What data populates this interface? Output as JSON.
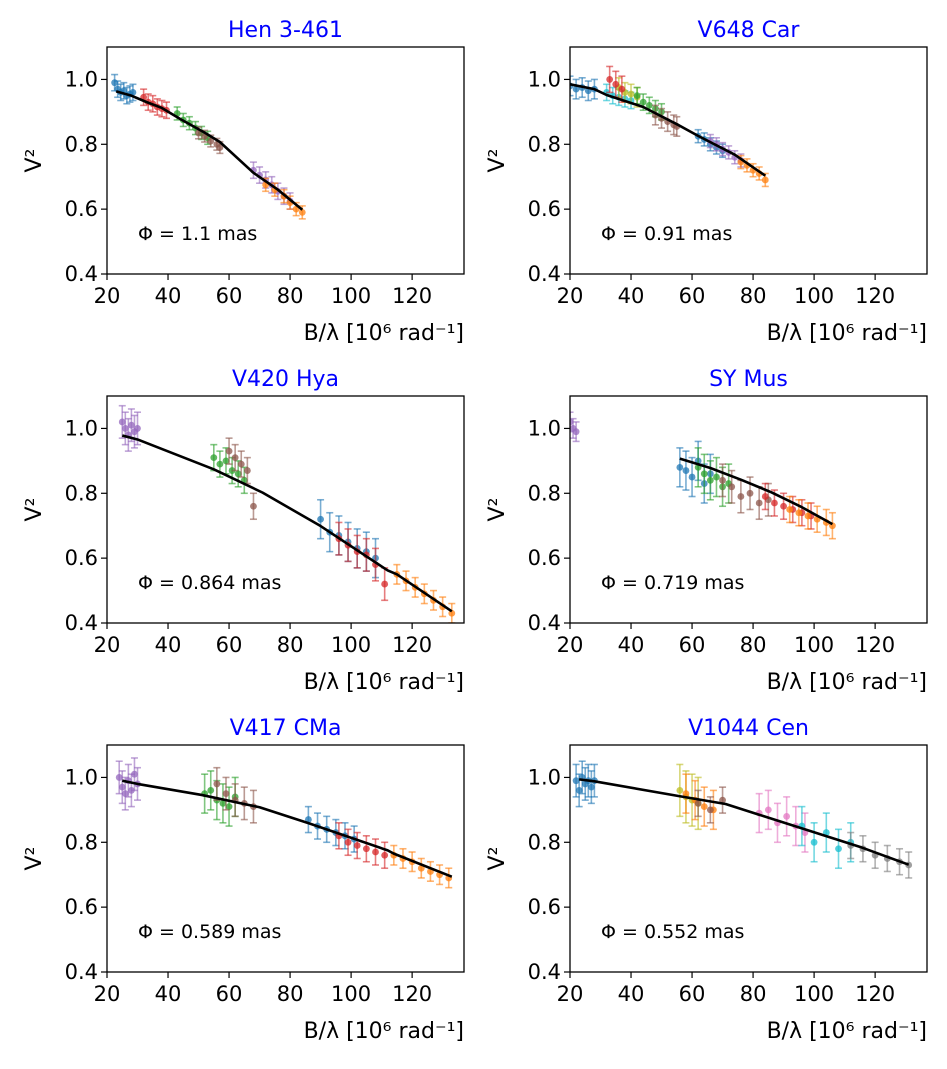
{
  "figure": {
    "description_label": "Six-panel squared visibility vs spatial frequency"
  },
  "chart_data": [
    {
      "type": "scatter",
      "title": "Hen 3-461",
      "xlabel": "B/λ [10⁶ rad⁻¹]",
      "ylabel": "V²",
      "xlim": [
        20,
        137
      ],
      "ylim": [
        0.4,
        1.1
      ],
      "xticks": [
        20,
        40,
        60,
        80,
        100,
        120
      ],
      "yticks": [
        0.4,
        0.6,
        0.8,
        1.0
      ],
      "annotation": "Φ = 1.1 mas",
      "fit": [
        [
          23,
          0.963
        ],
        [
          28,
          0.95
        ],
        [
          33,
          0.93
        ],
        [
          38,
          0.912
        ],
        [
          44,
          0.878
        ],
        [
          52,
          0.836
        ],
        [
          57,
          0.807
        ],
        [
          68,
          0.712
        ],
        [
          76,
          0.66
        ],
        [
          84,
          0.598
        ]
      ],
      "series": [
        {
          "name": "blue",
          "color": "#1f77b4",
          "x": [
            22.5,
            23.5,
            24.5,
            25.5,
            26.5,
            27.5,
            28.5
          ],
          "y": [
            0.99,
            0.97,
            0.96,
            0.965,
            0.95,
            0.955,
            0.96
          ],
          "err": 0.025
        },
        {
          "name": "red",
          "color": "#d62728",
          "x": [
            32,
            33.5,
            35,
            36.5,
            38,
            39.5
          ],
          "y": [
            0.945,
            0.93,
            0.925,
            0.915,
            0.91,
            0.905
          ],
          "err": 0.025
        },
        {
          "name": "green",
          "color": "#2ca02c",
          "x": [
            43,
            45,
            47,
            49,
            51,
            53
          ],
          "y": [
            0.895,
            0.875,
            0.865,
            0.85,
            0.835,
            0.82
          ],
          "err": 0.02
        },
        {
          "name": "brown",
          "color": "#8c564b",
          "x": [
            50,
            52,
            54,
            56,
            57
          ],
          "y": [
            0.835,
            0.825,
            0.81,
            0.8,
            0.79
          ],
          "err": 0.018
        },
        {
          "name": "purple",
          "color": "#9467bd",
          "x": [
            68,
            70,
            72,
            74,
            76,
            78,
            80
          ],
          "y": [
            0.72,
            0.705,
            0.69,
            0.675,
            0.655,
            0.64,
            0.625
          ],
          "err": 0.025
        },
        {
          "name": "orange",
          "color": "#ff7f0e",
          "x": [
            72,
            75,
            78,
            80,
            82,
            84
          ],
          "y": [
            0.675,
            0.66,
            0.64,
            0.62,
            0.6,
            0.59
          ],
          "err": 0.02
        }
      ]
    },
    {
      "type": "scatter",
      "title": "V648 Car",
      "xlabel": "B/λ [10⁶ rad⁻¹]",
      "ylabel": "V²",
      "xlim": [
        20,
        137
      ],
      "ylim": [
        0.4,
        1.1
      ],
      "xticks": [
        20,
        40,
        60,
        80,
        100,
        120
      ],
      "yticks": [
        0.4,
        0.6,
        0.8,
        1.0
      ],
      "annotation": "Φ = 0.91 mas",
      "fit": [
        [
          20,
          0.985
        ],
        [
          28,
          0.97
        ],
        [
          32,
          0.952
        ],
        [
          44,
          0.915
        ],
        [
          55,
          0.862
        ],
        [
          62,
          0.826
        ],
        [
          74,
          0.768
        ],
        [
          84,
          0.703
        ]
      ],
      "series": [
        {
          "name": "blue",
          "color": "#1f77b4",
          "x": [
            20,
            22,
            24,
            26,
            28
          ],
          "y": [
            0.98,
            0.97,
            0.975,
            0.965,
            0.97
          ],
          "err": 0.03
        },
        {
          "name": "cyan",
          "color": "#17becf",
          "x": [
            32,
            34,
            36,
            38,
            40
          ],
          "y": [
            0.96,
            0.95,
            0.945,
            0.94,
            0.935
          ],
          "err": 0.025
        },
        {
          "name": "olive",
          "color": "#bcbd22",
          "x": [
            36,
            38,
            40,
            42
          ],
          "y": [
            0.975,
            0.96,
            0.955,
            0.945
          ],
          "err": 0.03
        },
        {
          "name": "red",
          "color": "#d62728",
          "x": [
            33,
            35,
            37
          ],
          "y": [
            1.0,
            0.985,
            0.97
          ],
          "err": 0.04
        },
        {
          "name": "green",
          "color": "#2ca02c",
          "x": [
            42,
            44,
            46,
            48,
            50
          ],
          "y": [
            0.95,
            0.93,
            0.92,
            0.91,
            0.9
          ],
          "err": 0.025
        },
        {
          "name": "brown",
          "color": "#8c564b",
          "x": [
            48,
            50,
            52,
            54,
            55
          ],
          "y": [
            0.89,
            0.88,
            0.87,
            0.86,
            0.855
          ],
          "err": 0.03
        },
        {
          "name": "blue2",
          "color": "#1f77b4",
          "x": [
            62,
            64,
            66,
            68,
            70
          ],
          "y": [
            0.825,
            0.815,
            0.8,
            0.79,
            0.78
          ],
          "err": 0.02
        },
        {
          "name": "purple",
          "color": "#9467bd",
          "x": [
            66,
            68,
            70,
            72,
            74,
            76
          ],
          "y": [
            0.81,
            0.8,
            0.785,
            0.775,
            0.76,
            0.75
          ],
          "err": 0.02
        },
        {
          "name": "orange",
          "color": "#ff7f0e",
          "x": [
            76,
            78,
            80,
            82,
            84
          ],
          "y": [
            0.745,
            0.735,
            0.72,
            0.71,
            0.69
          ],
          "err": 0.02
        }
      ]
    },
    {
      "type": "scatter",
      "title": "V420 Hya",
      "xlabel": "B/λ [10⁶ rad⁻¹]",
      "ylabel": "V²",
      "xlim": [
        20,
        137
      ],
      "ylim": [
        0.4,
        1.1
      ],
      "xticks": [
        20,
        40,
        60,
        80,
        100,
        120
      ],
      "yticks": [
        0.4,
        0.6,
        0.8,
        1.0
      ],
      "annotation": "Φ = 0.864 mas",
      "fit": [
        [
          25,
          0.978
        ],
        [
          30,
          0.966
        ],
        [
          55,
          0.874
        ],
        [
          71,
          0.802
        ],
        [
          90,
          0.699
        ],
        [
          112,
          0.562
        ],
        [
          115,
          0.55
        ],
        [
          133,
          0.436
        ]
      ],
      "series": [
        {
          "name": "purple",
          "color": "#9467bd",
          "x": [
            25,
            26,
            27,
            28,
            29,
            30
          ],
          "y": [
            1.02,
            1.0,
            0.98,
            1.01,
            0.99,
            1.0
          ],
          "err": 0.05
        },
        {
          "name": "green",
          "color": "#2ca02c",
          "x": [
            55,
            57,
            59,
            61,
            63,
            65
          ],
          "y": [
            0.91,
            0.89,
            0.9,
            0.87,
            0.86,
            0.84
          ],
          "err": 0.04
        },
        {
          "name": "brown",
          "color": "#8c564b",
          "x": [
            60,
            62,
            64,
            66,
            68
          ],
          "y": [
            0.93,
            0.91,
            0.89,
            0.87,
            0.76
          ],
          "err": 0.04
        },
        {
          "name": "blue",
          "color": "#1f77b4",
          "x": [
            90,
            93,
            96,
            99,
            102,
            105,
            108
          ],
          "y": [
            0.72,
            0.68,
            0.67,
            0.65,
            0.63,
            0.62,
            0.6
          ],
          "err": 0.06
        },
        {
          "name": "red",
          "color": "#d62728",
          "x": [
            96,
            99,
            102,
            105,
            108,
            111
          ],
          "y": [
            0.66,
            0.64,
            0.62,
            0.61,
            0.58,
            0.52
          ],
          "err": 0.05
        },
        {
          "name": "orange",
          "color": "#ff7f0e",
          "x": [
            115,
            118,
            121,
            124,
            127,
            130,
            133
          ],
          "y": [
            0.55,
            0.53,
            0.51,
            0.49,
            0.47,
            0.45,
            0.43
          ],
          "err": 0.03
        }
      ]
    },
    {
      "type": "scatter",
      "title": "SY Mus",
      "xlabel": "B/λ [10⁶ rad⁻¹]",
      "ylabel": "V²",
      "xlim": [
        20,
        137
      ],
      "ylim": [
        0.4,
        1.1
      ],
      "xticks": [
        20,
        40,
        60,
        80,
        100,
        120
      ],
      "yticks": [
        0.4,
        0.6,
        0.8,
        1.0
      ],
      "annotation": "Φ = 0.719 mas",
      "fit": [
        [
          56,
          0.907
        ],
        [
          66,
          0.878
        ],
        [
          76,
          0.842
        ],
        [
          86,
          0.803
        ],
        [
          96,
          0.757
        ],
        [
          106,
          0.705
        ]
      ],
      "series": [
        {
          "name": "purple",
          "color": "#9467bd",
          "x": [
            20,
            21,
            22
          ],
          "y": [
            1.02,
            1.0,
            0.99
          ],
          "err": 0.03
        },
        {
          "name": "blue",
          "color": "#1f77b4",
          "x": [
            56,
            58,
            60,
            62,
            64,
            66
          ],
          "y": [
            0.88,
            0.87,
            0.85,
            0.9,
            0.83,
            0.86
          ],
          "err": 0.06
        },
        {
          "name": "green",
          "color": "#2ca02c",
          "x": [
            62,
            64,
            66,
            68,
            70,
            72
          ],
          "y": [
            0.88,
            0.86,
            0.84,
            0.85,
            0.82,
            0.83
          ],
          "err": 0.06
        },
        {
          "name": "brown",
          "color": "#8c564b",
          "x": [
            70,
            73,
            76,
            79,
            82,
            85
          ],
          "y": [
            0.84,
            0.82,
            0.79,
            0.8,
            0.77,
            0.78
          ],
          "err": 0.05
        },
        {
          "name": "red",
          "color": "#d62728",
          "x": [
            84,
            87,
            90,
            93,
            96,
            99
          ],
          "y": [
            0.79,
            0.77,
            0.76,
            0.75,
            0.74,
            0.73
          ],
          "err": 0.04
        },
        {
          "name": "orange",
          "color": "#ff7f0e",
          "x": [
            92,
            95,
            98,
            101,
            104,
            106
          ],
          "y": [
            0.75,
            0.74,
            0.73,
            0.72,
            0.71,
            0.7
          ],
          "err": 0.04
        }
      ]
    },
    {
      "type": "scatter",
      "title": "V417 CMa",
      "xlabel": "B/λ [10⁶ rad⁻¹]",
      "ylabel": "V²",
      "xlim": [
        20,
        137
      ],
      "ylim": [
        0.4,
        1.1
      ],
      "xticks": [
        20,
        40,
        60,
        80,
        100,
        120
      ],
      "yticks": [
        0.4,
        0.6,
        0.8,
        1.0
      ],
      "annotation": "Φ = 0.589 mas",
      "fit": [
        [
          25,
          0.99
        ],
        [
          30,
          0.98
        ],
        [
          51,
          0.946
        ],
        [
          70,
          0.908
        ],
        [
          86,
          0.859
        ],
        [
          112,
          0.775
        ],
        [
          114,
          0.765
        ],
        [
          133,
          0.694
        ]
      ],
      "series": [
        {
          "name": "purple",
          "color": "#9467bd",
          "x": [
            24,
            25,
            26,
            27,
            28,
            29,
            30
          ],
          "y": [
            1.0,
            0.97,
            0.95,
            0.99,
            0.96,
            1.01,
            0.98
          ],
          "err": 0.05
        },
        {
          "name": "green",
          "color": "#2ca02c",
          "x": [
            52,
            54,
            56,
            58,
            60,
            62
          ],
          "y": [
            0.95,
            0.96,
            0.93,
            0.92,
            0.91,
            0.94
          ],
          "err": 0.06
        },
        {
          "name": "brown",
          "color": "#8c564b",
          "x": [
            56,
            59,
            62,
            65,
            68
          ],
          "y": [
            0.98,
            0.95,
            0.93,
            0.92,
            0.91
          ],
          "err": 0.05
        },
        {
          "name": "blue",
          "color": "#1f77b4",
          "x": [
            86,
            89,
            92,
            95,
            98,
            101
          ],
          "y": [
            0.87,
            0.85,
            0.84,
            0.83,
            0.82,
            0.81
          ],
          "err": 0.04
        },
        {
          "name": "red",
          "color": "#d62728",
          "x": [
            96,
            99,
            102,
            105,
            108,
            111
          ],
          "y": [
            0.82,
            0.8,
            0.79,
            0.78,
            0.77,
            0.76
          ],
          "err": 0.04
        },
        {
          "name": "orange",
          "color": "#ff7f0e",
          "x": [
            114,
            117,
            120,
            123,
            126,
            129,
            132
          ],
          "y": [
            0.76,
            0.75,
            0.74,
            0.72,
            0.71,
            0.7,
            0.69
          ],
          "err": 0.03
        }
      ]
    },
    {
      "type": "scatter",
      "title": "V1044 Cen",
      "xlabel": "B/λ [10⁶ rad⁻¹]",
      "ylabel": "V²",
      "xlim": [
        20,
        137
      ],
      "ylim": [
        0.4,
        1.1
      ],
      "xticks": [
        20,
        40,
        60,
        80,
        100,
        120
      ],
      "yticks": [
        0.4,
        0.6,
        0.8,
        1.0
      ],
      "annotation": "Φ = 0.552 mas",
      "fit": [
        [
          23,
          0.994
        ],
        [
          28,
          0.988
        ],
        [
          56,
          0.942
        ],
        [
          71,
          0.918
        ],
        [
          82,
          0.885
        ],
        [
          100,
          0.831
        ],
        [
          115,
          0.786
        ],
        [
          131,
          0.731
        ]
      ],
      "series": [
        {
          "name": "blue",
          "color": "#1f77b4",
          "x": [
            22,
            23,
            24,
            25,
            26,
            27,
            28
          ],
          "y": [
            0.99,
            0.96,
            1.0,
            0.98,
            0.99,
            0.97,
            0.99
          ],
          "err": 0.05
        },
        {
          "name": "olive",
          "color": "#bcbd22",
          "x": [
            56,
            58,
            60,
            62
          ],
          "y": [
            0.96,
            0.94,
            0.93,
            0.92
          ],
          "err": 0.08
        },
        {
          "name": "orange",
          "color": "#ff7f0e",
          "x": [
            58,
            61,
            64,
            67
          ],
          "y": [
            0.95,
            0.93,
            0.91,
            0.9
          ],
          "err": 0.06
        },
        {
          "name": "brown",
          "color": "#8c564b",
          "x": [
            62,
            66,
            70
          ],
          "y": [
            0.92,
            0.9,
            0.93
          ],
          "err": 0.04
        },
        {
          "name": "pink",
          "color": "#e377c2",
          "x": [
            82,
            85,
            88,
            91,
            94,
            97
          ],
          "y": [
            0.89,
            0.9,
            0.86,
            0.88,
            0.85,
            0.83
          ],
          "err": 0.06
        },
        {
          "name": "cyan",
          "color": "#17becf",
          "x": [
            96,
            100,
            104,
            108,
            112
          ],
          "y": [
            0.85,
            0.8,
            0.83,
            0.78,
            0.8
          ],
          "err": 0.06
        },
        {
          "name": "gray",
          "color": "#7f7f7f",
          "x": [
            112,
            116,
            120,
            124,
            128,
            131
          ],
          "y": [
            0.79,
            0.78,
            0.76,
            0.75,
            0.74,
            0.73
          ],
          "err": 0.04
        }
      ]
    }
  ]
}
